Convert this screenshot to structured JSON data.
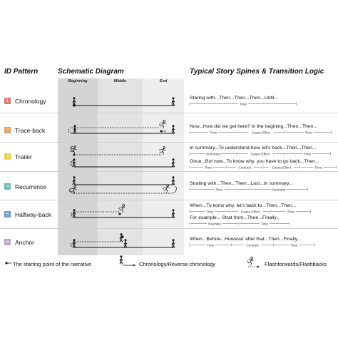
{
  "headers": {
    "id_pattern": "ID  Pattern",
    "schematic": "Schematic Diagram",
    "spines": "Typical Story Spines & Transition Logic"
  },
  "columns": [
    "Beginning",
    "Middle",
    "End"
  ],
  "colors": {
    "band_beginning": "#d4d4d4",
    "band_middle": "#e3e3e3",
    "band_end": "#eeeeee"
  },
  "patterns": [
    {
      "id": "1",
      "name": "Chronology",
      "color": "#e07a6e",
      "spines": [
        {
          "text": "Staring with...Then...Then...Then...Until...",
          "segments": [
            "Time"
          ]
        }
      ]
    },
    {
      "id": "2",
      "name": "Trace-back",
      "color": "#e6a05a",
      "spines": [
        {
          "text": "Now...How did we get here? In the begining...Then...Then...",
          "segments": [
            "Time",
            "Cause-Effect",
            "Time"
          ]
        }
      ]
    },
    {
      "id": "3",
      "name": "Trailer",
      "color": "#e9cf4c",
      "spines": [
        {
          "text": "In summary...To understand how, let's back...Then...Then...",
          "segments": [
            "Summary",
            "Cause-Effect",
            "Time"
          ]
        },
        {
          "text": "Once...But now...To know why, you have to go back...Then...",
          "segments": [
            "Time",
            "Contrast",
            "Cause-Effect",
            "Time"
          ]
        }
      ]
    },
    {
      "id": "4",
      "name": "Recurrence",
      "color": "#6cbcb3",
      "spines": [
        {
          "text": "Strating with...Then...Then...Last...In summary...",
          "segments": [
            "Time",
            "Summary"
          ]
        }
      ]
    },
    {
      "id": "5",
      "name": "Halfway-back",
      "color": "#6f9cc8",
      "spines": [
        {
          "text": "When...To konw why, let's back to...Then...Then...",
          "segments": [
            "Time",
            "Cause-Effect",
            "Time"
          ]
        },
        {
          "text": "For example... Strat from...Then...Finally...",
          "segments": [
            "Example",
            "Time"
          ]
        }
      ]
    },
    {
      "id": "6",
      "name": "Anchor",
      "color": "#b8a4cf",
      "spines": [
        {
          "text": "When...Before...However after that...Then...Finally...",
          "segments": [
            "Time",
            "Contrast",
            "Time"
          ]
        }
      ]
    }
  ],
  "legend": {
    "start_point": "The starting point of the narrative",
    "chronology": "Chronology/Reverse chronology",
    "flash": "Flashforwards/Flashbacks"
  }
}
